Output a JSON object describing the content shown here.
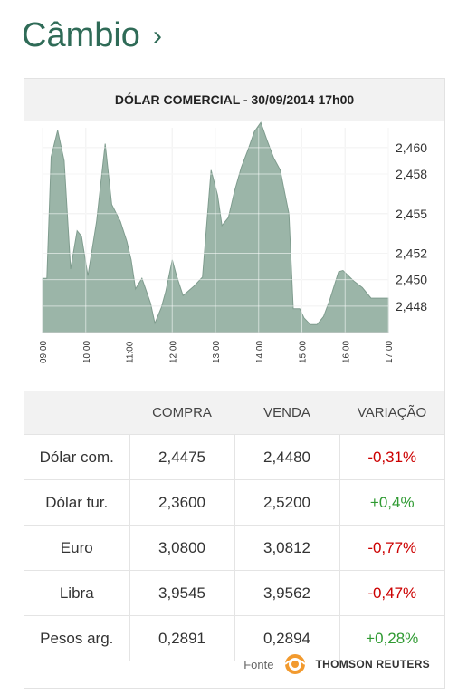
{
  "section": {
    "title": "Câmbio",
    "chevron": "›"
  },
  "chart": {
    "title": "DÓLAR COMERCIAL - 30/09/2014 17h00"
  },
  "chart_data": {
    "type": "area",
    "title": "DÓLAR COMERCIAL - 30/09/2014 17h00",
    "xlabel": "",
    "ylabel": "",
    "x_ticks": [
      "09:00",
      "10:00",
      "11:00",
      "12:00",
      "13:00",
      "14:00",
      "15:00",
      "16:00",
      "17:00"
    ],
    "y_ticks": [
      "2,460",
      "2,458",
      "2,455",
      "2,452",
      "2,450",
      "2,448"
    ],
    "ylim": [
      2.446,
      2.4615
    ],
    "xlim": [
      9.0,
      17.0
    ],
    "grid": true,
    "fill_color": "#9bb5a8",
    "series": [
      {
        "x": [
          9.0,
          9.1,
          9.2,
          9.35,
          9.5,
          9.65,
          9.8,
          9.9,
          10.05,
          10.25,
          10.45,
          10.6,
          10.8,
          10.95,
          11.05,
          11.15,
          11.3,
          11.5,
          11.6,
          11.75,
          11.85,
          12.0,
          12.1,
          12.25,
          12.5,
          12.7,
          12.9,
          13.05,
          13.15,
          13.3,
          13.45,
          13.6,
          13.75,
          13.9,
          14.05,
          14.2,
          14.35,
          14.5,
          14.7,
          14.8,
          14.95,
          15.05,
          15.2,
          15.35,
          15.5,
          15.65,
          15.85,
          15.95,
          16.2,
          16.4,
          16.6,
          16.75,
          16.9,
          17.0
        ],
        "y": [
          2.4501,
          2.4501,
          2.4593,
          2.4613,
          2.459,
          2.4508,
          2.4537,
          2.4533,
          2.4503,
          2.4544,
          2.4603,
          2.4557,
          2.4544,
          2.4529,
          2.4515,
          2.4493,
          2.4501,
          2.4482,
          2.4467,
          2.4479,
          2.4491,
          2.4515,
          2.4503,
          2.4488,
          2.4495,
          2.4502,
          2.4583,
          2.4564,
          2.4541,
          2.4547,
          2.4568,
          2.4585,
          2.4598,
          2.4612,
          2.4619,
          2.4605,
          2.4592,
          2.4583,
          2.455,
          2.4478,
          2.4478,
          2.4471,
          2.4466,
          2.4466,
          2.4472,
          2.4485,
          2.4506,
          2.4507,
          2.4499,
          2.4494,
          2.4486,
          2.4486,
          2.4486,
          2.4486
        ]
      }
    ]
  },
  "table": {
    "headers": [
      "",
      "COMPRA",
      "VENDA",
      "VARIAÇÃO"
    ],
    "rows": [
      {
        "name": "Dólar com.",
        "compra": "2,4475",
        "venda": "2,4480",
        "variacao": "-0,31%",
        "trend": "neg"
      },
      {
        "name": "Dólar tur.",
        "compra": "2,3600",
        "venda": "2,5200",
        "variacao": "+0,4%",
        "trend": "pos"
      },
      {
        "name": "Euro",
        "compra": "3,0800",
        "venda": "3,0812",
        "variacao": "-0,77%",
        "trend": "neg"
      },
      {
        "name": "Libra",
        "compra": "3,9545",
        "venda": "3,9562",
        "variacao": "-0,47%",
        "trend": "neg"
      },
      {
        "name": "Pesos arg.",
        "compra": "0,2891",
        "venda": "0,2894",
        "variacao": "+0,28%",
        "trend": "pos"
      }
    ]
  },
  "source": {
    "label": "Fonte",
    "brand": "THOMSON REUTERS",
    "logo_icon": "thomson-reuters-logo-icon"
  },
  "colors": {
    "accent": "#2f6b57",
    "negative": "#cc0000",
    "positive": "#2f9a32",
    "chart_fill": "#9bb5a8"
  }
}
